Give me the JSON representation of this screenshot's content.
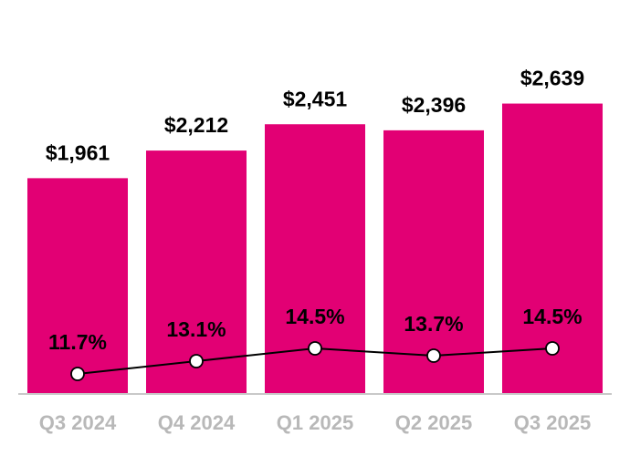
{
  "chart_data": {
    "type": "combo",
    "categories": [
      "Q3 2024",
      "Q4 2024",
      "Q1 2025",
      "Q2 2025",
      "Q3 2025"
    ],
    "ylim": [
      0,
      3000
    ],
    "y2lim": [
      9.5,
      45.7
    ],
    "series": [
      {
        "type": "bar",
        "color": "#e20074",
        "values": [
          1961,
          2212,
          2451,
          2396,
          2639
        ],
        "value_labels": [
          "$1,961",
          "$2,212",
          "$2,451",
          "$2,396",
          "$2,639"
        ]
      },
      {
        "type": "line",
        "axis": "y2",
        "color": "#000000",
        "values": [
          11.7,
          13.1,
          14.5,
          13.7,
          14.5
        ],
        "value_labels": [
          "11.7%",
          "13.1%",
          "14.5%",
          "13.7%",
          "14.5%"
        ]
      }
    ]
  }
}
